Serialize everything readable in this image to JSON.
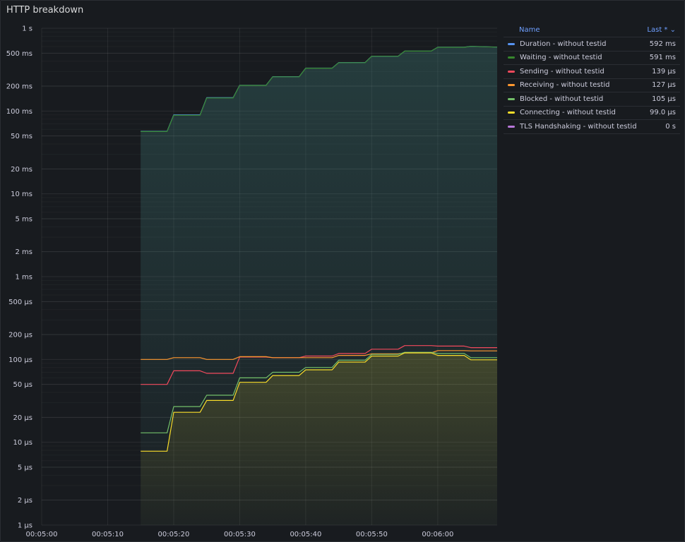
{
  "panel": {
    "title": "HTTP breakdown"
  },
  "legend": {
    "name_header": "Name",
    "last_header": "Last * ⌄",
    "items": [
      {
        "name": "Duration - without testid",
        "last": "592 ms",
        "color": "#5794f2"
      },
      {
        "name": "Waiting - without testid",
        "last": "591 ms",
        "color": "#37872d"
      },
      {
        "name": "Sending - without testid",
        "last": "139 µs",
        "color": "#f2495c"
      },
      {
        "name": "Receiving - without testid",
        "last": "127 µs",
        "color": "#ff9830"
      },
      {
        "name": "Blocked - without testid",
        "last": "105 µs",
        "color": "#73bf69"
      },
      {
        "name": "Connecting - without testid",
        "last": "99.0 µs",
        "color": "#fade2a"
      },
      {
        "name": "TLS Handshaking - without testid",
        "last": "0 s",
        "color": "#b877d9"
      }
    ]
  },
  "chart_data": {
    "type": "line",
    "title": "HTTP breakdown",
    "y_scale": "log",
    "y_unit": "seconds",
    "ylim": [
      1e-06,
      1
    ],
    "y_ticks": [
      {
        "value": 1,
        "label": "1 s"
      },
      {
        "value": 0.5,
        "label": "500 ms"
      },
      {
        "value": 0.2,
        "label": "200 ms"
      },
      {
        "value": 0.1,
        "label": "100 ms"
      },
      {
        "value": 0.05,
        "label": "50 ms"
      },
      {
        "value": 0.02,
        "label": "20 ms"
      },
      {
        "value": 0.01,
        "label": "10 ms"
      },
      {
        "value": 0.005,
        "label": "5 ms"
      },
      {
        "value": 0.002,
        "label": "2 ms"
      },
      {
        "value": 0.001,
        "label": "1 ms"
      },
      {
        "value": 0.0005,
        "label": "500 µs"
      },
      {
        "value": 0.0002,
        "label": "200 µs"
      },
      {
        "value": 0.0001,
        "label": "100 µs"
      },
      {
        "value": 5e-05,
        "label": "50 µs"
      },
      {
        "value": 2e-05,
        "label": "20 µs"
      },
      {
        "value": 1e-05,
        "label": "10 µs"
      },
      {
        "value": 5e-06,
        "label": "5 µs"
      },
      {
        "value": 2e-06,
        "label": "2 µs"
      },
      {
        "value": 1e-06,
        "label": "1 µs"
      }
    ],
    "x_ticks": [
      "00:05:00",
      "00:05:10",
      "00:05:20",
      "00:05:30",
      "00:05:40",
      "00:05:50",
      "00:06:00"
    ],
    "xlim": [
      "00:05:00",
      "00:06:09"
    ],
    "grid": true,
    "legend_position": "right",
    "series": [
      {
        "name": "Duration - without testid",
        "color": "#5794f2",
        "fill": true,
        "points": [
          [
            "00:05:15",
            0.057
          ],
          [
            "00:05:19",
            0.057
          ],
          [
            "00:05:20",
            0.09
          ],
          [
            "00:05:24",
            0.09
          ],
          [
            "00:05:25",
            0.145
          ],
          [
            "00:05:29",
            0.145
          ],
          [
            "00:05:30",
            0.205
          ],
          [
            "00:05:34",
            0.205
          ],
          [
            "00:05:35",
            0.26
          ],
          [
            "00:05:39",
            0.26
          ],
          [
            "00:05:40",
            0.33
          ],
          [
            "00:05:44",
            0.33
          ],
          [
            "00:05:45",
            0.385
          ],
          [
            "00:05:49",
            0.385
          ],
          [
            "00:05:50",
            0.46
          ],
          [
            "00:05:54",
            0.46
          ],
          [
            "00:05:55",
            0.53
          ],
          [
            "00:05:59",
            0.53
          ],
          [
            "00:06:00",
            0.59
          ],
          [
            "00:06:04",
            0.59
          ],
          [
            "00:06:05",
            0.605
          ],
          [
            "00:06:09",
            0.592
          ]
        ]
      },
      {
        "name": "Waiting - without testid",
        "color": "#37872d",
        "fill": true,
        "points": [
          [
            "00:05:15",
            0.0565
          ],
          [
            "00:05:19",
            0.0565
          ],
          [
            "00:05:20",
            0.089
          ],
          [
            "00:05:24",
            0.089
          ],
          [
            "00:05:25",
            0.144
          ],
          [
            "00:05:29",
            0.144
          ],
          [
            "00:05:30",
            0.204
          ],
          [
            "00:05:34",
            0.204
          ],
          [
            "00:05:35",
            0.259
          ],
          [
            "00:05:39",
            0.259
          ],
          [
            "00:05:40",
            0.329
          ],
          [
            "00:05:44",
            0.329
          ],
          [
            "00:05:45",
            0.384
          ],
          [
            "00:05:49",
            0.384
          ],
          [
            "00:05:50",
            0.459
          ],
          [
            "00:05:54",
            0.459
          ],
          [
            "00:05:55",
            0.529
          ],
          [
            "00:05:59",
            0.529
          ],
          [
            "00:06:00",
            0.589
          ],
          [
            "00:06:04",
            0.589
          ],
          [
            "00:06:05",
            0.604
          ],
          [
            "00:06:09",
            0.591
          ]
        ]
      },
      {
        "name": "Sending - without testid",
        "color": "#f2495c",
        "fill": false,
        "points": [
          [
            "00:05:15",
            5e-05
          ],
          [
            "00:05:19",
            5e-05
          ],
          [
            "00:05:20",
            7.3e-05
          ],
          [
            "00:05:24",
            7.3e-05
          ],
          [
            "00:05:25",
            6.8e-05
          ],
          [
            "00:05:29",
            6.8e-05
          ],
          [
            "00:05:30",
            0.000107
          ],
          [
            "00:05:34",
            0.000107
          ],
          [
            "00:05:35",
            0.000105
          ],
          [
            "00:05:39",
            0.000105
          ],
          [
            "00:05:40",
            0.00011
          ],
          [
            "00:05:44",
            0.00011
          ],
          [
            "00:05:45",
            0.000118
          ],
          [
            "00:05:49",
            0.000118
          ],
          [
            "00:05:50",
            0.000133
          ],
          [
            "00:05:54",
            0.000133
          ],
          [
            "00:05:55",
            0.000147
          ],
          [
            "00:05:59",
            0.000147
          ],
          [
            "00:06:00",
            0.000145
          ],
          [
            "00:06:04",
            0.000145
          ],
          [
            "00:06:05",
            0.000139
          ],
          [
            "00:06:09",
            0.000139
          ]
        ]
      },
      {
        "name": "Receiving - without testid",
        "color": "#ff9830",
        "fill": false,
        "points": [
          [
            "00:05:15",
            0.0001
          ],
          [
            "00:05:19",
            0.0001
          ],
          [
            "00:05:20",
            0.000105
          ],
          [
            "00:05:24",
            0.000105
          ],
          [
            "00:05:25",
            0.0001
          ],
          [
            "00:05:29",
            0.0001
          ],
          [
            "00:05:30",
            0.000108
          ],
          [
            "00:05:34",
            0.000108
          ],
          [
            "00:05:35",
            0.000105
          ],
          [
            "00:05:39",
            0.000105
          ],
          [
            "00:05:40",
            0.000105
          ],
          [
            "00:05:44",
            0.000105
          ],
          [
            "00:05:45",
            0.000112
          ],
          [
            "00:05:49",
            0.000112
          ],
          [
            "00:05:50",
            0.000117
          ],
          [
            "00:05:54",
            0.000117
          ],
          [
            "00:05:55",
            0.00012
          ],
          [
            "00:05:59",
            0.00012
          ],
          [
            "00:06:00",
            0.000128
          ],
          [
            "00:06:04",
            0.000128
          ],
          [
            "00:06:05",
            0.000127
          ],
          [
            "00:06:09",
            0.000127
          ]
        ]
      },
      {
        "name": "Blocked - without testid",
        "color": "#73bf69",
        "fill": false,
        "points": [
          [
            "00:05:15",
            1.3e-05
          ],
          [
            "00:05:19",
            1.3e-05
          ],
          [
            "00:05:20",
            2.7e-05
          ],
          [
            "00:05:24",
            2.7e-05
          ],
          [
            "00:05:25",
            3.7e-05
          ],
          [
            "00:05:29",
            3.7e-05
          ],
          [
            "00:05:30",
            6e-05
          ],
          [
            "00:05:34",
            6e-05
          ],
          [
            "00:05:35",
            7e-05
          ],
          [
            "00:05:39",
            7e-05
          ],
          [
            "00:05:40",
            8e-05
          ],
          [
            "00:05:44",
            8e-05
          ],
          [
            "00:05:45",
            9.8e-05
          ],
          [
            "00:05:49",
            9.8e-05
          ],
          [
            "00:05:50",
            0.000115
          ],
          [
            "00:05:54",
            0.000115
          ],
          [
            "00:05:55",
            0.000122
          ],
          [
            "00:05:59",
            0.000122
          ],
          [
            "00:06:00",
            0.000118
          ],
          [
            "00:06:04",
            0.000118
          ],
          [
            "00:06:05",
            0.000105
          ],
          [
            "00:06:09",
            0.000105
          ]
        ]
      },
      {
        "name": "Connecting - without testid",
        "color": "#fade2a",
        "fill": true,
        "points": [
          [
            "00:05:15",
            7.8e-06
          ],
          [
            "00:05:19",
            7.8e-06
          ],
          [
            "00:05:20",
            2.3e-05
          ],
          [
            "00:05:24",
            2.3e-05
          ],
          [
            "00:05:25",
            3.2e-05
          ],
          [
            "00:05:29",
            3.2e-05
          ],
          [
            "00:05:30",
            5.3e-05
          ],
          [
            "00:05:34",
            5.3e-05
          ],
          [
            "00:05:35",
            6.4e-05
          ],
          [
            "00:05:39",
            6.4e-05
          ],
          [
            "00:05:40",
            7.5e-05
          ],
          [
            "00:05:44",
            7.5e-05
          ],
          [
            "00:05:45",
            9.3e-05
          ],
          [
            "00:05:49",
            9.3e-05
          ],
          [
            "00:05:50",
            0.00011
          ],
          [
            "00:05:54",
            0.00011
          ],
          [
            "00:05:55",
            0.00012
          ],
          [
            "00:05:59",
            0.00012
          ],
          [
            "00:06:00",
            0.000112
          ],
          [
            "00:06:04",
            0.000112
          ],
          [
            "00:06:05",
            9.9e-05
          ],
          [
            "00:06:09",
            9.9e-05
          ]
        ]
      },
      {
        "name": "TLS Handshaking - without testid",
        "color": "#b877d9",
        "fill": false,
        "points": []
      }
    ]
  }
}
